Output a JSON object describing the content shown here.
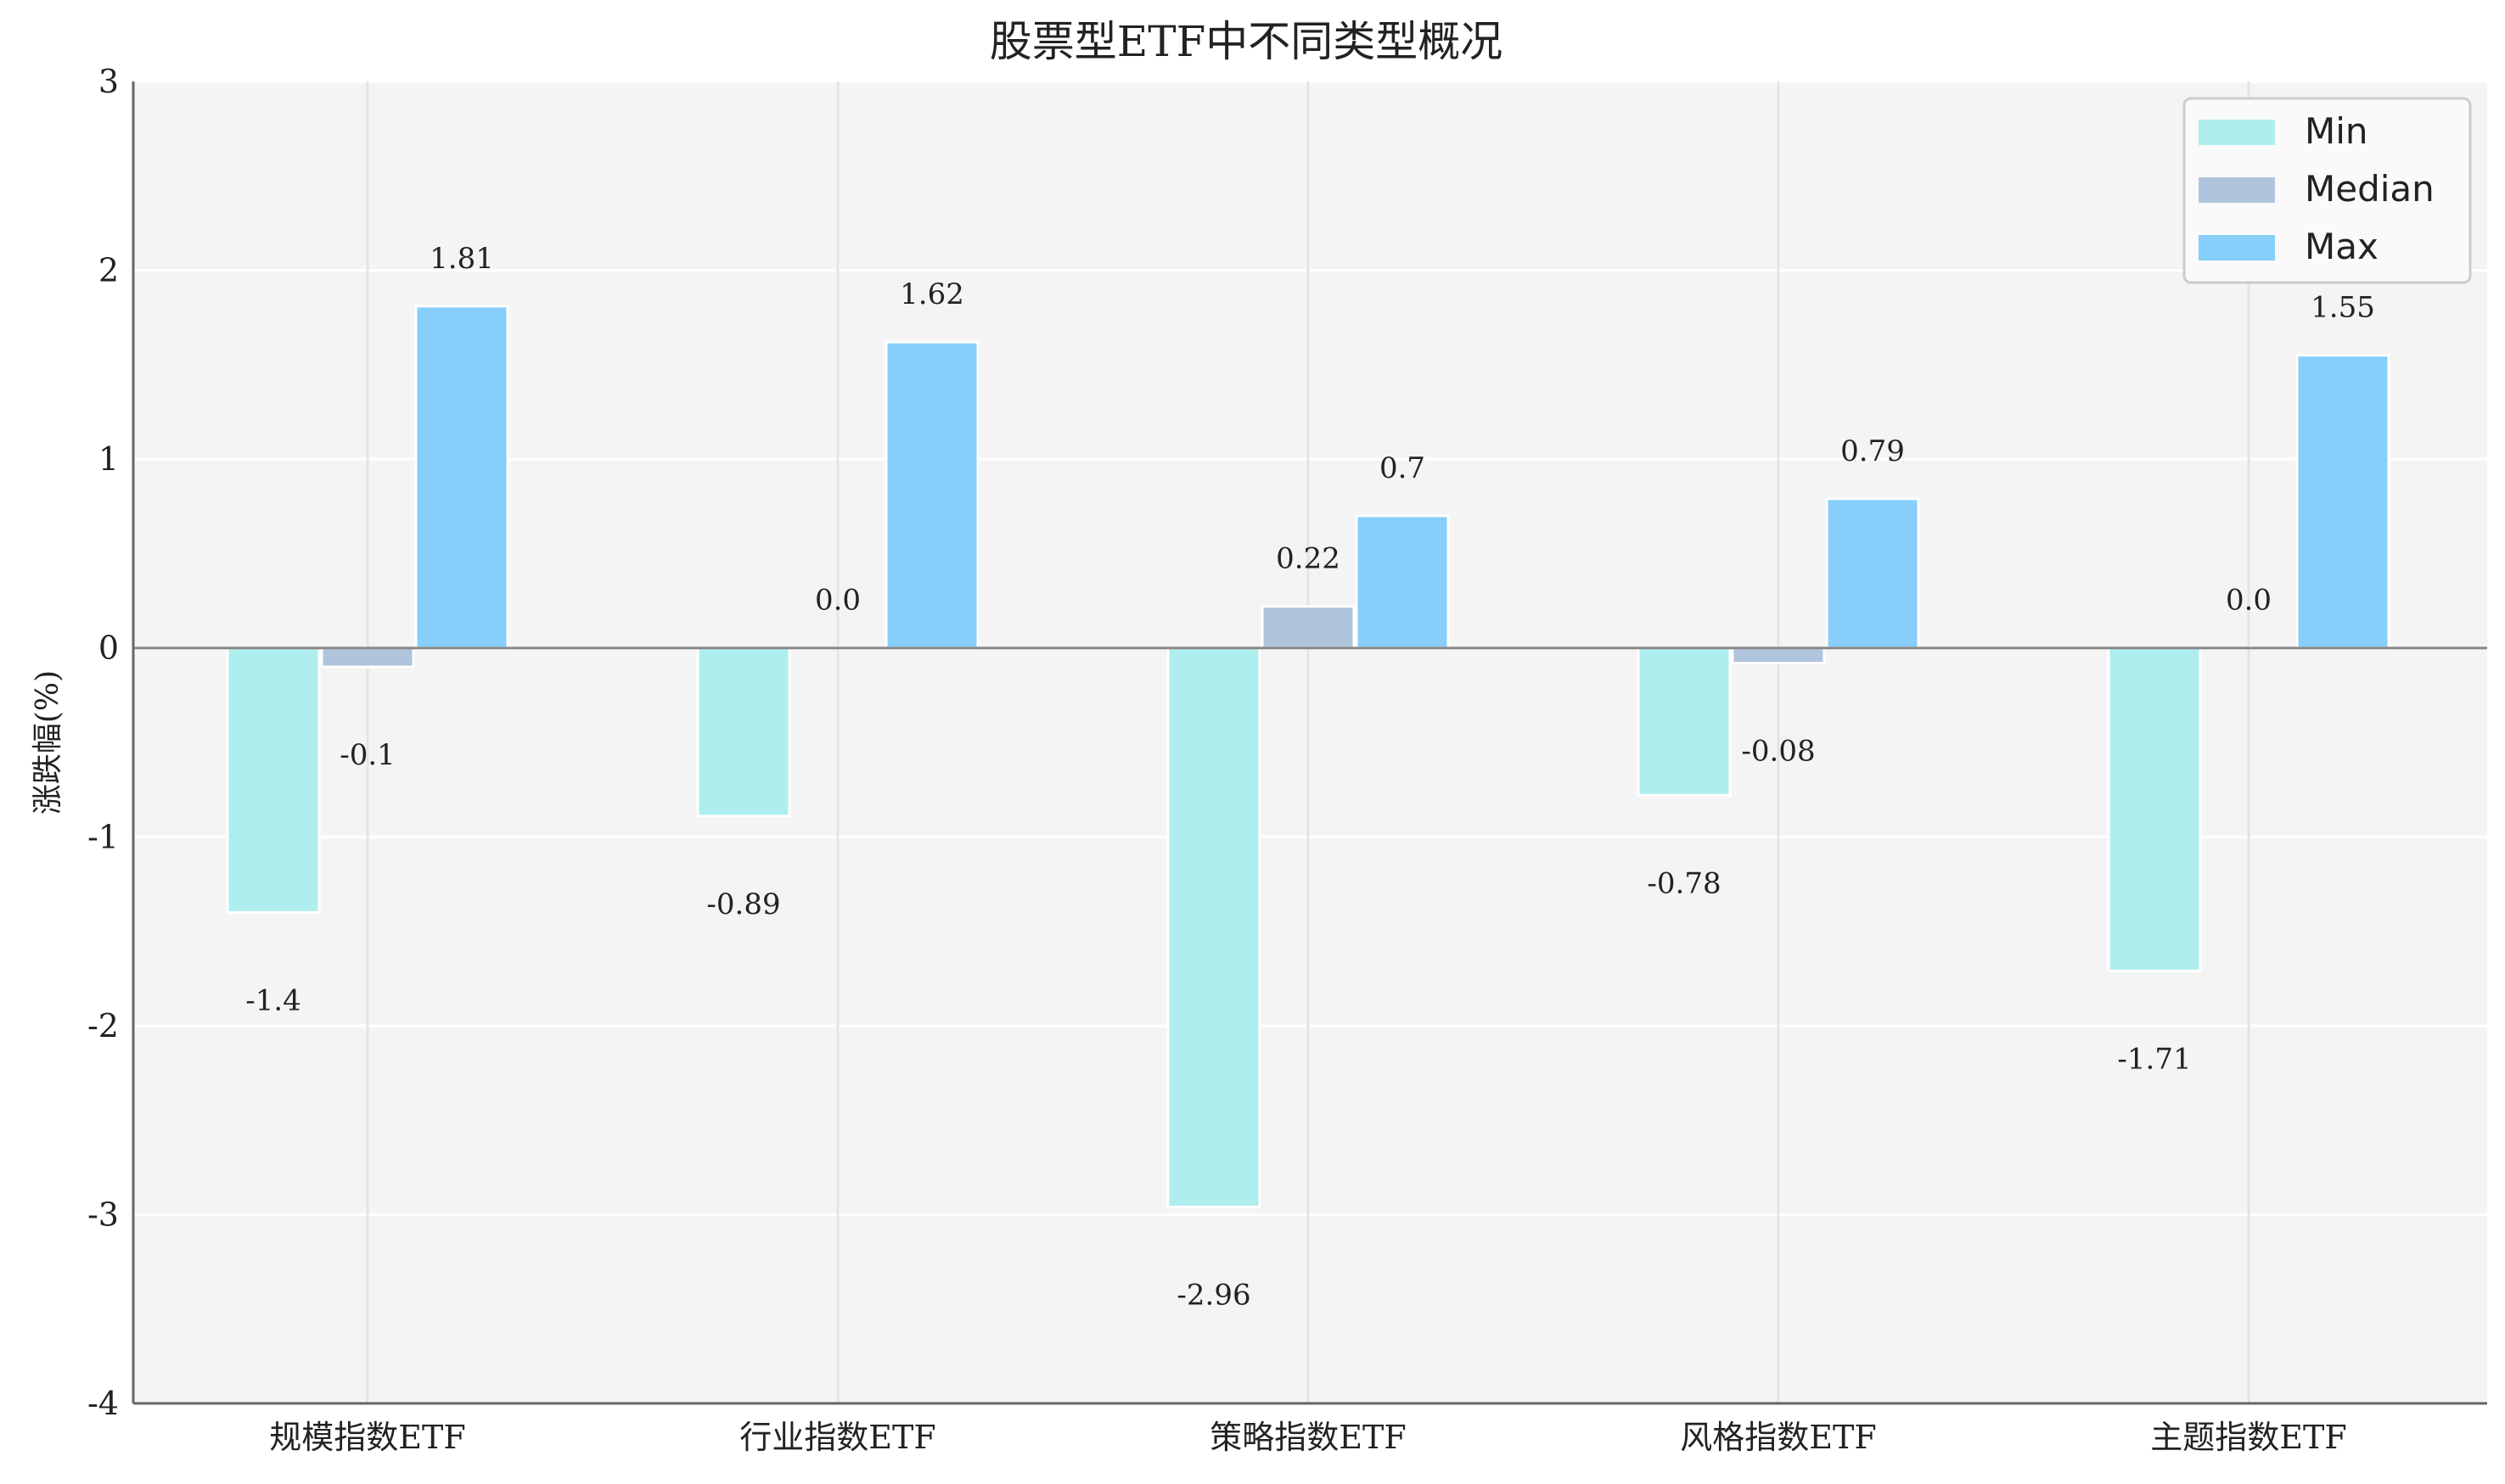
{
  "chart_data": {
    "type": "bar",
    "title": "股票型ETF中不同类型概况",
    "xlabel": "",
    "ylabel": "涨跌幅(%)",
    "ylim": [
      -4,
      3
    ],
    "yticks": [
      "-4",
      "-3",
      "-2",
      "-1",
      "0",
      "1",
      "2",
      "3"
    ],
    "categories": [
      "规模指数ETF",
      "行业指数ETF",
      "策略指数ETF",
      "风格指数ETF",
      "主题指数ETF"
    ],
    "series": [
      {
        "name": "Min",
        "color": "#AFEEEE",
        "values": [
          -1.4,
          -0.89,
          -2.96,
          -0.78,
          -1.71
        ],
        "labels": [
          "-1.4",
          "-0.89",
          "-2.96",
          "-0.78",
          "-1.71"
        ]
      },
      {
        "name": "Median",
        "color": "#B0C4DE",
        "values": [
          -0.1,
          0.0,
          0.22,
          -0.08,
          0.0
        ],
        "labels": [
          "-0.1",
          "0.0",
          "0.22",
          "-0.08",
          "0.0"
        ]
      },
      {
        "name": "Max",
        "color": "#87CEFA",
        "values": [
          1.81,
          1.62,
          0.7,
          0.79,
          1.55
        ],
        "labels": [
          "1.81",
          "1.62",
          "0.7",
          "0.79",
          "1.55"
        ]
      }
    ],
    "grid": true,
    "legend": "top-right"
  }
}
